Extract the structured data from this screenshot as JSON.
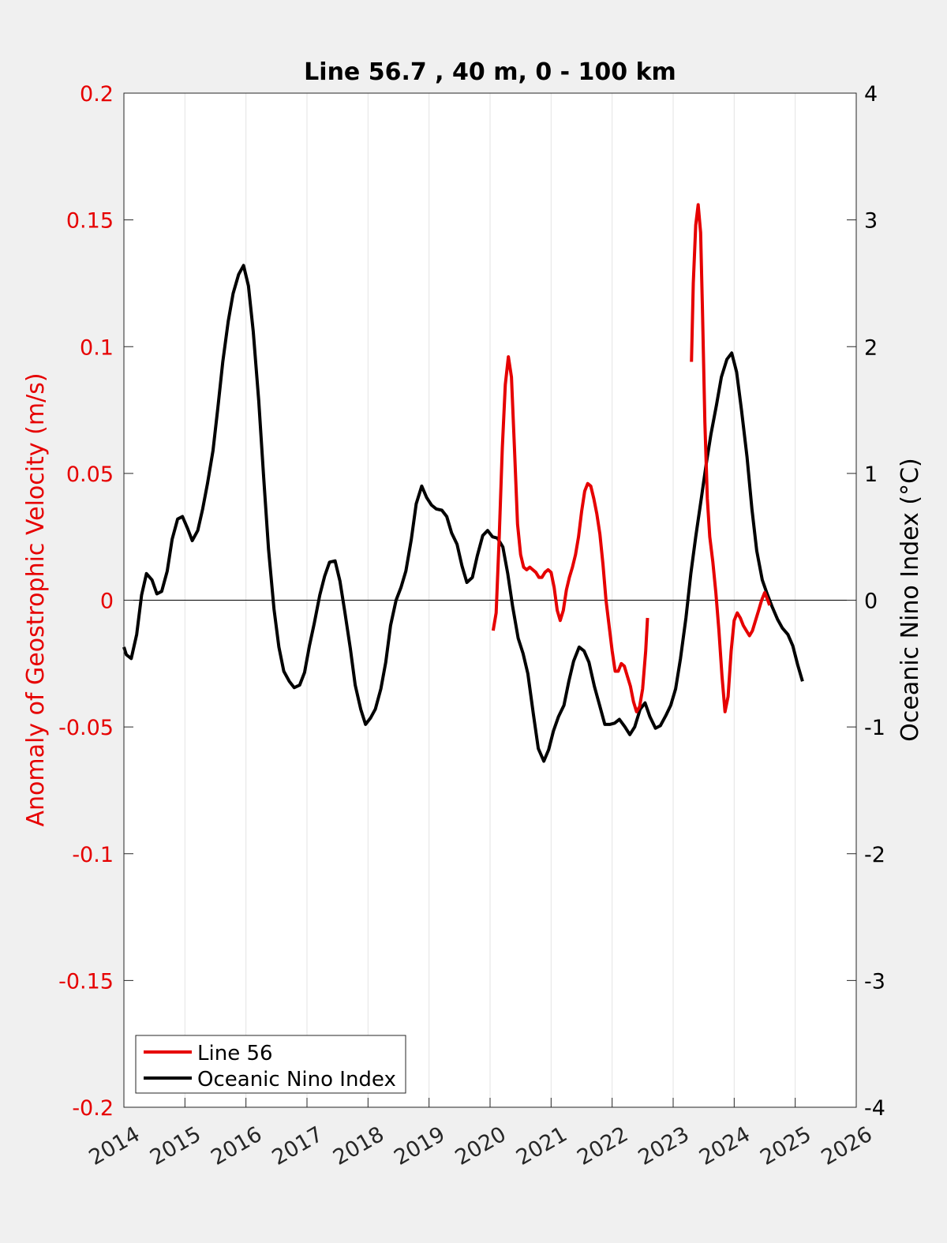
{
  "chart_data": {
    "type": "line",
    "title": "Line 56.7 , 40 m, 0 - 100 km",
    "xlim": [
      2014,
      2026
    ],
    "x_ticks": [
      "2014",
      "2015",
      "2016",
      "2017",
      "2018",
      "2019",
      "2020",
      "2021",
      "2022",
      "2023",
      "2024",
      "2025",
      "2026"
    ],
    "grid": "vertical",
    "legend_position": "bottom-left",
    "left_axis": {
      "label": "Anomaly of Geostrophic Velocity (m/s)",
      "color": "#e60000",
      "ylim": [
        -0.2,
        0.2
      ],
      "ticks": [
        "-0.2",
        "-0.15",
        "-0.1",
        "-0.05",
        "0",
        "0.05",
        "0.1",
        "0.15",
        "0.2"
      ]
    },
    "right_axis": {
      "label": "Oceanic Nino Index (°C)",
      "color": "#000000",
      "ylim": [
        -4,
        4
      ],
      "ticks": [
        "-4",
        "-3",
        "-2",
        "-1",
        "0",
        "1",
        "2",
        "3",
        "4"
      ]
    },
    "series": [
      {
        "name": "Line 56",
        "axis": "left",
        "color": "#e60000",
        "segments": [
          [
            [
              2020.05,
              -0.012
            ],
            [
              2020.1,
              -0.005
            ],
            [
              2020.15,
              0.025
            ],
            [
              2020.2,
              0.06
            ],
            [
              2020.25,
              0.085
            ],
            [
              2020.3,
              0.096
            ],
            [
              2020.35,
              0.088
            ],
            [
              2020.4,
              0.06
            ],
            [
              2020.45,
              0.03
            ],
            [
              2020.5,
              0.018
            ],
            [
              2020.55,
              0.013
            ],
            [
              2020.6,
              0.012
            ],
            [
              2020.65,
              0.013
            ],
            [
              2020.7,
              0.012
            ],
            [
              2020.75,
              0.011
            ],
            [
              2020.8,
              0.009
            ],
            [
              2020.85,
              0.009
            ],
            [
              2020.9,
              0.011
            ],
            [
              2020.95,
              0.012
            ],
            [
              2021.0,
              0.011
            ],
            [
              2021.05,
              0.005
            ],
            [
              2021.1,
              -0.004
            ],
            [
              2021.15,
              -0.008
            ],
            [
              2021.2,
              -0.004
            ],
            [
              2021.25,
              0.004
            ],
            [
              2021.3,
              0.009
            ],
            [
              2021.35,
              0.013
            ],
            [
              2021.4,
              0.018
            ],
            [
              2021.45,
              0.025
            ],
            [
              2021.5,
              0.035
            ],
            [
              2021.55,
              0.043
            ],
            [
              2021.6,
              0.046
            ],
            [
              2021.65,
              0.045
            ],
            [
              2021.7,
              0.04
            ],
            [
              2021.75,
              0.034
            ],
            [
              2021.8,
              0.026
            ],
            [
              2021.85,
              0.014
            ],
            [
              2021.9,
              0.0
            ],
            [
              2021.95,
              -0.01
            ],
            [
              2022.0,
              -0.02
            ],
            [
              2022.05,
              -0.028
            ],
            [
              2022.1,
              -0.028
            ],
            [
              2022.15,
              -0.025
            ],
            [
              2022.2,
              -0.026
            ],
            [
              2022.25,
              -0.03
            ],
            [
              2022.3,
              -0.034
            ],
            [
              2022.35,
              -0.04
            ],
            [
              2022.4,
              -0.044
            ],
            [
              2022.45,
              -0.042
            ],
            [
              2022.5,
              -0.035
            ],
            [
              2022.55,
              -0.02
            ],
            [
              2022.58,
              -0.007
            ]
          ],
          [
            [
              2023.3,
              0.094
            ],
            [
              2023.33,
              0.125
            ],
            [
              2023.37,
              0.148
            ],
            [
              2023.41,
              0.156
            ],
            [
              2023.45,
              0.145
            ],
            [
              2023.48,
              0.115
            ],
            [
              2023.52,
              0.07
            ],
            [
              2023.56,
              0.04
            ],
            [
              2023.6,
              0.025
            ],
            [
              2023.65,
              0.015
            ],
            [
              2023.7,
              0.003
            ],
            [
              2023.75,
              -0.012
            ],
            [
              2023.8,
              -0.03
            ],
            [
              2023.85,
              -0.044
            ],
            [
              2023.9,
              -0.038
            ],
            [
              2023.95,
              -0.02
            ],
            [
              2024.0,
              -0.008
            ],
            [
              2024.05,
              -0.005
            ],
            [
              2024.1,
              -0.007
            ],
            [
              2024.15,
              -0.01
            ],
            [
              2024.2,
              -0.012
            ],
            [
              2024.25,
              -0.014
            ],
            [
              2024.3,
              -0.012
            ],
            [
              2024.35,
              -0.008
            ],
            [
              2024.4,
              -0.004
            ],
            [
              2024.45,
              0.0
            ],
            [
              2024.5,
              0.003
            ],
            [
              2024.55,
              0.0
            ],
            [
              2024.58,
              -0.002
            ]
          ]
        ]
      },
      {
        "name": "Oceanic Nino Index",
        "axis": "right",
        "color": "#000000",
        "segments": [
          [
            [
              2014.0,
              -0.37
            ],
            [
              2014.04,
              -0.43
            ],
            [
              2014.12,
              -0.46
            ],
            [
              2014.21,
              -0.27
            ],
            [
              2014.29,
              0.04
            ],
            [
              2014.37,
              0.21
            ],
            [
              2014.46,
              0.16
            ],
            [
              2014.54,
              0.05
            ],
            [
              2014.62,
              0.07
            ],
            [
              2014.71,
              0.23
            ],
            [
              2014.79,
              0.48
            ],
            [
              2014.88,
              0.64
            ],
            [
              2014.96,
              0.66
            ],
            [
              2015.04,
              0.57
            ],
            [
              2015.12,
              0.47
            ],
            [
              2015.21,
              0.55
            ],
            [
              2015.29,
              0.72
            ],
            [
              2015.37,
              0.92
            ],
            [
              2015.46,
              1.18
            ],
            [
              2015.54,
              1.52
            ],
            [
              2015.62,
              1.88
            ],
            [
              2015.71,
              2.2
            ],
            [
              2015.79,
              2.42
            ],
            [
              2015.88,
              2.57
            ],
            [
              2015.96,
              2.64
            ],
            [
              2016.04,
              2.48
            ],
            [
              2016.12,
              2.12
            ],
            [
              2016.21,
              1.57
            ],
            [
              2016.29,
              0.97
            ],
            [
              2016.37,
              0.4
            ],
            [
              2016.46,
              -0.07
            ],
            [
              2016.54,
              -0.37
            ],
            [
              2016.62,
              -0.56
            ],
            [
              2016.71,
              -0.64
            ],
            [
              2016.79,
              -0.69
            ],
            [
              2016.88,
              -0.67
            ],
            [
              2016.96,
              -0.57
            ],
            [
              2017.04,
              -0.36
            ],
            [
              2017.12,
              -0.18
            ],
            [
              2017.21,
              0.04
            ],
            [
              2017.29,
              0.19
            ],
            [
              2017.37,
              0.3
            ],
            [
              2017.46,
              0.31
            ],
            [
              2017.54,
              0.15
            ],
            [
              2017.62,
              -0.09
            ],
            [
              2017.71,
              -0.38
            ],
            [
              2017.79,
              -0.67
            ],
            [
              2017.88,
              -0.86
            ],
            [
              2017.96,
              -0.98
            ],
            [
              2018.04,
              -0.93
            ],
            [
              2018.12,
              -0.86
            ],
            [
              2018.21,
              -0.7
            ],
            [
              2018.29,
              -0.49
            ],
            [
              2018.37,
              -0.2
            ],
            [
              2018.46,
              0.0
            ],
            [
              2018.54,
              0.1
            ],
            [
              2018.62,
              0.23
            ],
            [
              2018.71,
              0.48
            ],
            [
              2018.79,
              0.76
            ],
            [
              2018.88,
              0.9
            ],
            [
              2018.96,
              0.81
            ],
            [
              2019.04,
              0.75
            ],
            [
              2019.12,
              0.72
            ],
            [
              2019.21,
              0.71
            ],
            [
              2019.29,
              0.66
            ],
            [
              2019.37,
              0.53
            ],
            [
              2019.46,
              0.44
            ],
            [
              2019.54,
              0.27
            ],
            [
              2019.62,
              0.14
            ],
            [
              2019.71,
              0.18
            ],
            [
              2019.79,
              0.35
            ],
            [
              2019.88,
              0.51
            ],
            [
              2019.96,
              0.55
            ],
            [
              2020.04,
              0.5
            ],
            [
              2020.12,
              0.49
            ],
            [
              2020.21,
              0.42
            ],
            [
              2020.29,
              0.21
            ],
            [
              2020.37,
              -0.05
            ],
            [
              2020.46,
              -0.3
            ],
            [
              2020.54,
              -0.42
            ],
            [
              2020.62,
              -0.58
            ],
            [
              2020.71,
              -0.9
            ],
            [
              2020.79,
              -1.17
            ],
            [
              2020.88,
              -1.27
            ],
            [
              2020.96,
              -1.18
            ],
            [
              2021.04,
              -1.03
            ],
            [
              2021.12,
              -0.92
            ],
            [
              2021.21,
              -0.83
            ],
            [
              2021.29,
              -0.64
            ],
            [
              2021.37,
              -0.48
            ],
            [
              2021.46,
              -0.37
            ],
            [
              2021.54,
              -0.4
            ],
            [
              2021.62,
              -0.49
            ],
            [
              2021.71,
              -0.68
            ],
            [
              2021.79,
              -0.82
            ],
            [
              2021.88,
              -0.98
            ],
            [
              2021.96,
              -0.98
            ],
            [
              2022.04,
              -0.97
            ],
            [
              2022.12,
              -0.94
            ],
            [
              2022.21,
              -1.0
            ],
            [
              2022.29,
              -1.06
            ],
            [
              2022.37,
              -1.0
            ],
            [
              2022.46,
              -0.86
            ],
            [
              2022.54,
              -0.81
            ],
            [
              2022.62,
              -0.92
            ],
            [
              2022.71,
              -1.01
            ],
            [
              2022.79,
              -0.99
            ],
            [
              2022.88,
              -0.91
            ],
            [
              2022.96,
              -0.83
            ],
            [
              2023.04,
              -0.7
            ],
            [
              2023.12,
              -0.46
            ],
            [
              2023.21,
              -0.14
            ],
            [
              2023.29,
              0.21
            ],
            [
              2023.37,
              0.5
            ],
            [
              2023.46,
              0.8
            ],
            [
              2023.54,
              1.07
            ],
            [
              2023.62,
              1.31
            ],
            [
              2023.71,
              1.54
            ],
            [
              2023.79,
              1.76
            ],
            [
              2023.88,
              1.9
            ],
            [
              2023.96,
              1.95
            ],
            [
              2024.04,
              1.8
            ],
            [
              2024.12,
              1.5
            ],
            [
              2024.21,
              1.13
            ],
            [
              2024.29,
              0.72
            ],
            [
              2024.37,
              0.39
            ],
            [
              2024.46,
              0.16
            ],
            [
              2024.54,
              0.05
            ],
            [
              2024.62,
              -0.05
            ],
            [
              2024.71,
              -0.15
            ],
            [
              2024.79,
              -0.22
            ],
            [
              2024.88,
              -0.27
            ],
            [
              2024.96,
              -0.36
            ],
            [
              2025.04,
              -0.51
            ],
            [
              2025.12,
              -0.64
            ]
          ]
        ]
      }
    ]
  }
}
